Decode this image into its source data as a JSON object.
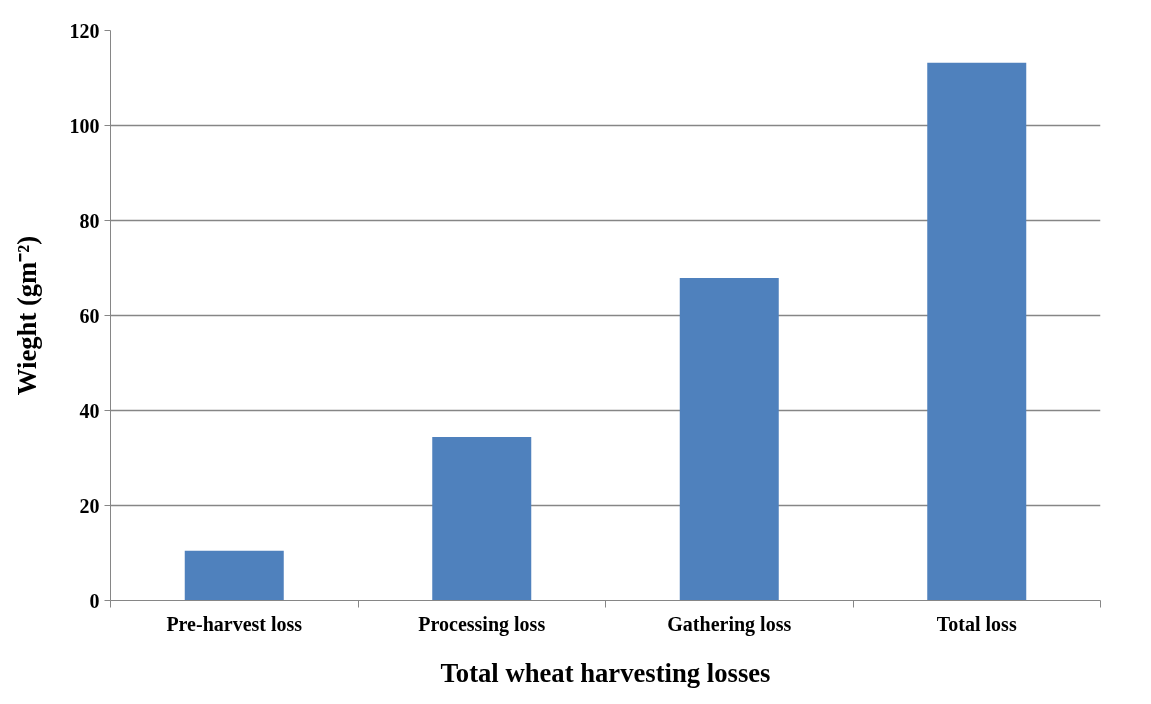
{
  "chart_data": {
    "type": "bar",
    "categories": [
      "Pre-harvest loss",
      "Processing loss",
      "Gathering loss",
      "Total loss"
    ],
    "values": [
      10.5,
      34.4,
      67.9,
      113.2
    ],
    "color": "#4f81bd",
    "xlabel": "Total wheat harvesting losses",
    "ylabel": "Wieght (gm⁻²)",
    "ylim": [
      0,
      120
    ],
    "yticks": [
      0,
      20,
      40,
      60,
      80,
      100,
      120
    ],
    "grid": "y"
  }
}
